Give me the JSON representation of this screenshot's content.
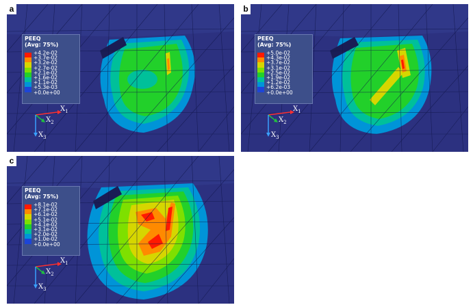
{
  "panels": [
    {
      "label": "a",
      "legend_title": "PEEQ",
      "legend_subtitle": "(Avg: 75%)",
      "legend_values": [
        "+4.2e-02",
        "+3.7e-02",
        "+3.2e-02",
        "+2.7e-02",
        "+2.1e-02",
        "+1.6e-02",
        "+1.1e-02",
        "+5.3e-03",
        "+0.0e+00"
      ],
      "axes": {
        "x1": "X",
        "x1_sub": "1",
        "x2": "X",
        "x2_sub": "2",
        "x3": "X",
        "x3_sub": "3"
      }
    },
    {
      "label": "b",
      "legend_title": "PEEQ",
      "legend_subtitle": "(Avg: 75%)",
      "legend_values": [
        "+5.0e-02",
        "+4.3e-02",
        "+3.7e-02",
        "+3.1e-02",
        "+2.5e-02",
        "+1.9e-02",
        "+1.2e-02",
        "+6.2e-03",
        "+0.0e+00"
      ],
      "axes": {
        "x1": "X",
        "x1_sub": "1",
        "x2": "X",
        "x2_sub": "2",
        "x3": "X",
        "x3_sub": "3"
      }
    },
    {
      "label": "c",
      "legend_title": "PEEQ",
      "legend_subtitle": "(Avg: 75%)",
      "legend_values": [
        "+8.1e-02",
        "+7.1e-02",
        "+6.1e-02",
        "+5.1e-02",
        "+4.1e-02",
        "+3.1e-02",
        "+2.0e-02",
        "+1.0e-02",
        "+0.0e+00"
      ],
      "axes": {
        "x1": "X",
        "x1_sub": "1",
        "x2": "X",
        "x2_sub": "2",
        "x3": "X",
        "x3_sub": "3"
      }
    }
  ],
  "colormap": [
    "#ff1a00",
    "#ff8a00",
    "#d6d600",
    "#7ee000",
    "#22d02a",
    "#00c09a",
    "#0094d8",
    "#1d45d8"
  ],
  "colors": {
    "mesh_background": "#2a2e7a",
    "mesh_line": "#11164a",
    "axis_x1": "#ff3030",
    "axis_x2": "#20c040",
    "axis_x3": "#3aa0ff"
  }
}
